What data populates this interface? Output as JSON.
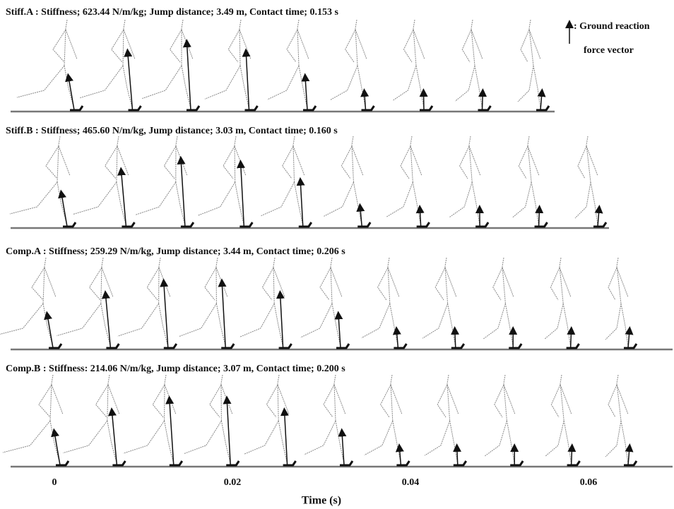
{
  "rows": [
    {
      "label": "Stiff.A : Stiffness; 623.44 N/m/kg; Jump distance; 3.49 m,  Contact time; 0.153 s"
    },
    {
      "label": "Stiff.B : Stiffness; 465.60 N/m/kg, Jump distance; 3.03 m,  Contact time; 0.160 s"
    },
    {
      "label": "Comp.A : Stiffness; 259.29 N/m/kg, Jump distance; 3.44 m,  Contact time; 0.206 s"
    },
    {
      "label": "Comp.B : Stiffness: 214.06 N/m/kg, Jump distance; 3.07 m,  Contact time; 0.200 s"
    }
  ],
  "legend": {
    "lines": [
      ": Ground reaction",
      "force vector"
    ]
  },
  "axis": {
    "ticks": [
      0,
      0.02,
      0.04,
      0.06
    ],
    "label": "Time (s)"
  }
}
